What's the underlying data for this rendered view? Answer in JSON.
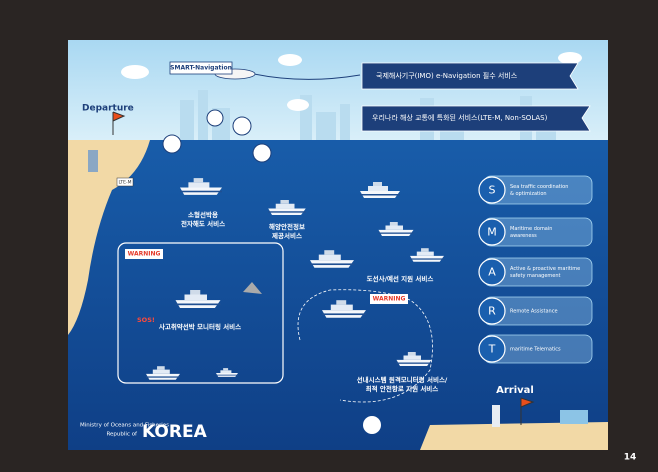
{
  "plane_label": "SMART-Navigation",
  "ribbons": [
    "국제해사기구(IMO) e-Navigation 필수 서비스",
    "우리나라 해상 교통에 특화된 서비스(LTE-M, Non-SOLAS)"
  ],
  "departure": "Departure",
  "lte_label": "LTE-M",
  "services": [
    {
      "lines": [
        "소형선박용",
        "전자해도 서비스"
      ]
    },
    {
      "lines": [
        "해양안전정보",
        "제공서비스"
      ]
    },
    {
      "lines": [
        "도선사/예선 지원 서비스"
      ]
    },
    {
      "lines": [
        "사고취약선박 모니터링 서비스"
      ]
    },
    {
      "lines": [
        "선내시스템 원격모니터링 서비스/",
        "최적 안전항로 지원 서비스"
      ]
    }
  ],
  "warnings": [
    "WARNING",
    "WARNING"
  ],
  "sos": "SOS!",
  "smart": [
    {
      "letter": "S",
      "lines": [
        "Sea traffic coordination",
        "& optimization"
      ]
    },
    {
      "letter": "M",
      "lines": [
        "Maritime domain",
        "awareness"
      ]
    },
    {
      "letter": "A",
      "lines": [
        "Active & proactive maritime",
        "safety management"
      ]
    },
    {
      "letter": "R",
      "lines": [
        "Remote Assistance"
      ]
    },
    {
      "letter": "T",
      "lines": [
        "maritime Telematics"
      ]
    }
  ],
  "arrival": "Arrival",
  "footer": {
    "ministry": "Ministry of Oceans and Fisheries",
    "republic": "Republic of",
    "korea": "KOREA"
  },
  "page_number": "14"
}
